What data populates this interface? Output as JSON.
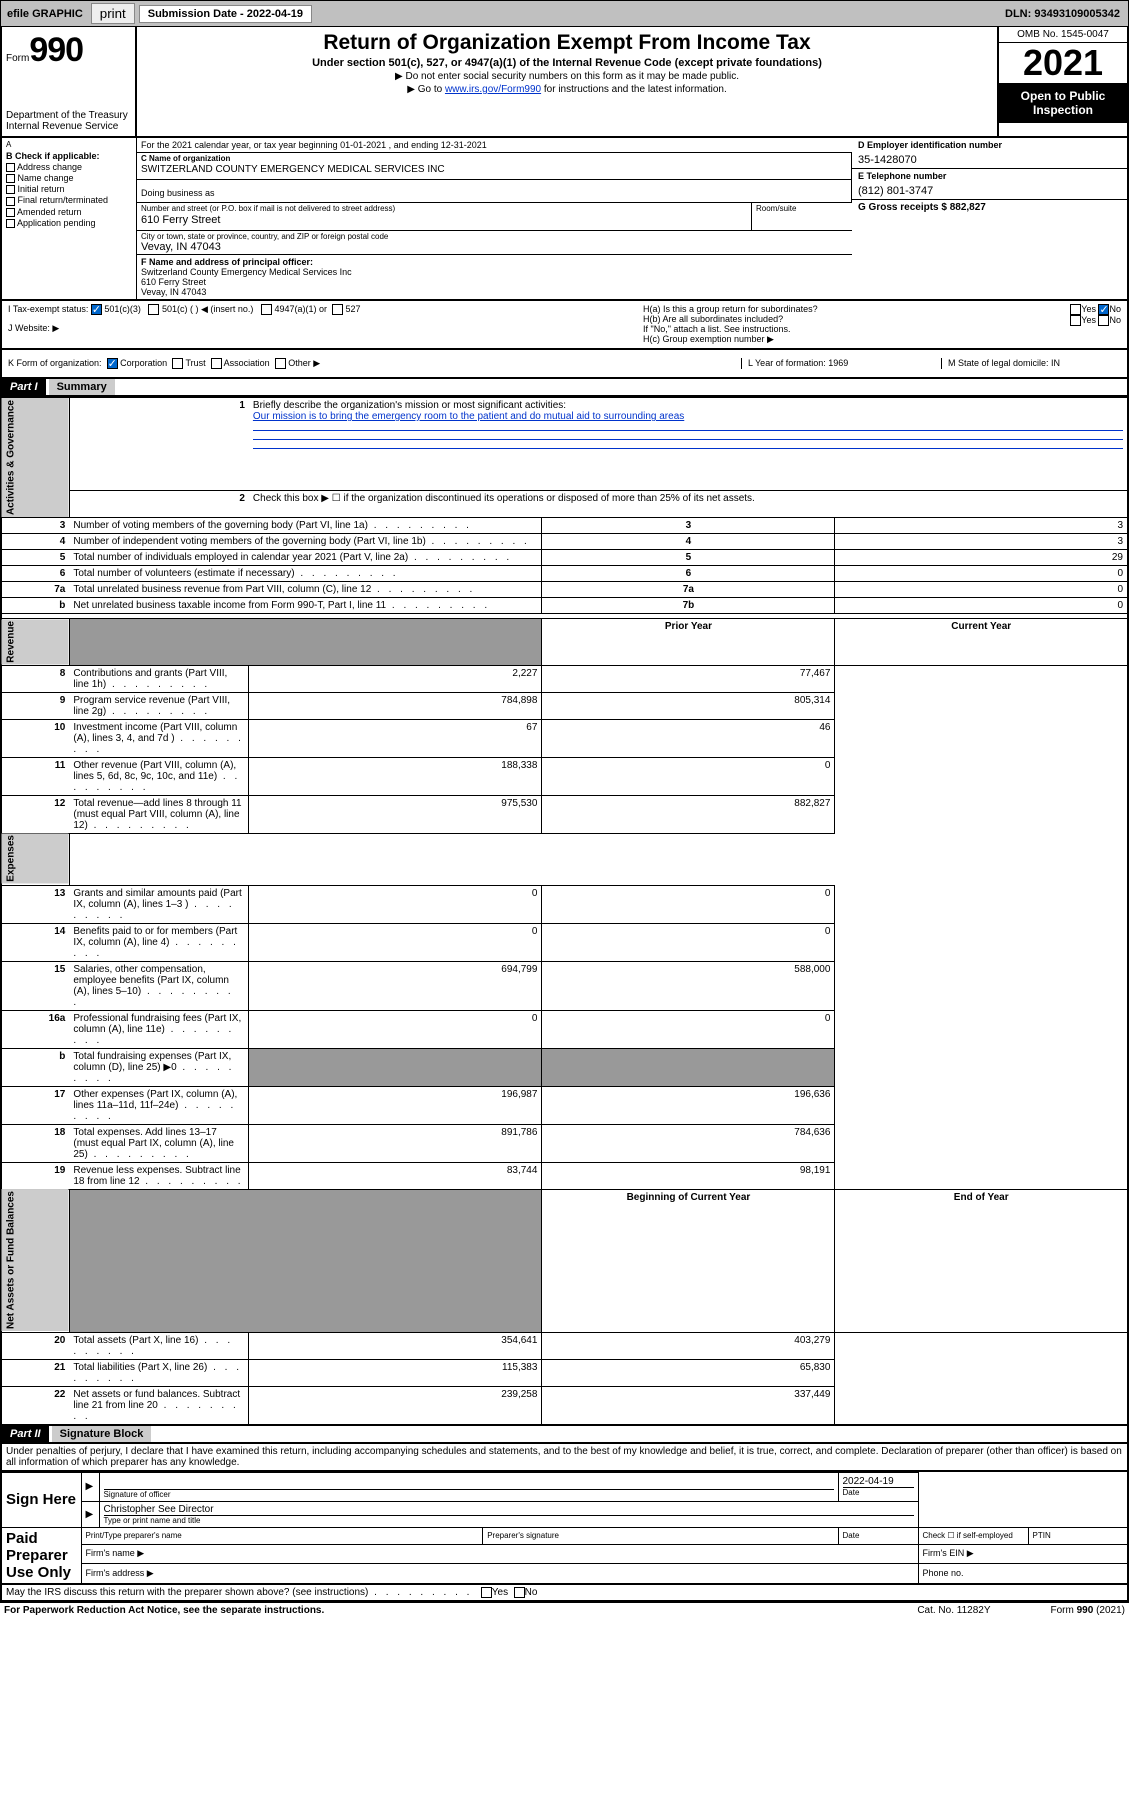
{
  "topbar": {
    "efile": "efile GRAPHIC",
    "print": "print",
    "subdate_label": "Submission Date - 2022-04-19",
    "dln": "DLN: 93493109005342"
  },
  "header": {
    "form_prefix": "Form",
    "form_no": "990",
    "dept": "Department of the Treasury Internal Revenue Service",
    "title": "Return of Organization Exempt From Income Tax",
    "sub": "Under section 501(c), 527, or 4947(a)(1) of the Internal Revenue Code (except private foundations)",
    "note1": "▶ Do not enter social security numbers on this form as it may be made public.",
    "note2_pre": "▶ Go to ",
    "note2_link": "www.irs.gov/Form990",
    "note2_post": " for instructions and the latest information.",
    "omb": "OMB No. 1545-0047",
    "year": "2021",
    "open": "Open to Public Inspection"
  },
  "line_a": "For the 2021 calendar year, or tax year beginning 01-01-2021   , and ending 12-31-2021",
  "col_b": {
    "title": "B Check if applicable:",
    "items": [
      "Address change",
      "Name change",
      "Initial return",
      "Final return/terminated",
      "Amended return",
      "Application pending"
    ]
  },
  "col_c": {
    "name_lbl": "C Name of organization",
    "name": "SWITZERLAND COUNTY EMERGENCY MEDICAL SERVICES INC",
    "dba_lbl": "Doing business as",
    "addr_lbl": "Number and street (or P.O. box if mail is not delivered to street address)",
    "addr": "610 Ferry Street",
    "room_lbl": "Room/suite",
    "city_lbl": "City or town, state or province, country, and ZIP or foreign postal code",
    "city": "Vevay, IN  47043",
    "f_lbl": "F Name and address of principal officer:",
    "f_name": "Switzerland County Emergency Medical Services Inc",
    "f_addr": "610 Ferry Street",
    "f_city": "Vevay, IN  47043"
  },
  "col_d": {
    "d_lbl": "D Employer identification number",
    "d_val": "35-1428070",
    "e_lbl": "E Telephone number",
    "e_val": "(812) 801-3747",
    "g_lbl": "G Gross receipts $ 882,827"
  },
  "row_i": {
    "label": "I    Tax-exempt status:",
    "opt1": "501(c)(3)",
    "opt2": "501(c) (  ) ◀ (insert no.)",
    "opt3": "4947(a)(1) or",
    "opt4": "527"
  },
  "row_j": "J    Website: ▶",
  "row_h": {
    "ha": "H(a)  Is this a group return for subordinates?",
    "hb": "H(b)  Are all subordinates included?",
    "hb_note": "If \"No,\" attach a list. See instructions.",
    "hc": "H(c)  Group exemption number ▶",
    "yes": "Yes",
    "no": "No"
  },
  "row_k": "K Form of organization:",
  "row_k_opts": [
    "Corporation",
    "Trust",
    "Association",
    "Other ▶"
  ],
  "row_l": "L Year of formation: 1969",
  "row_m": "M State of legal domicile: IN",
  "part1": {
    "hdr": "Part I",
    "title": "Summary"
  },
  "summary": {
    "sidebar": [
      "Activities & Governance",
      "Revenue",
      "Expenses",
      "Net Assets or Fund Balances"
    ],
    "line1": "Briefly describe the organization's mission or most significant activities:",
    "mission": "Our mission is to bring the emergency room to the patient and do mutual aid to surrounding areas",
    "line2": "Check this box ▶ ☐  if the organization discontinued its operations or disposed of more than 25% of its net assets.",
    "rows_gov": [
      {
        "n": "3",
        "d": "Number of voting members of the governing body (Part VI, line 1a)",
        "b": "3",
        "v": "3"
      },
      {
        "n": "4",
        "d": "Number of independent voting members of the governing body (Part VI, line 1b)",
        "b": "4",
        "v": "3"
      },
      {
        "n": "5",
        "d": "Total number of individuals employed in calendar year 2021 (Part V, line 2a)",
        "b": "5",
        "v": "29"
      },
      {
        "n": "6",
        "d": "Total number of volunteers (estimate if necessary)",
        "b": "6",
        "v": "0"
      },
      {
        "n": "7a",
        "d": "Total unrelated business revenue from Part VIII, column (C), line 12",
        "b": "7a",
        "v": "0"
      },
      {
        "n": "b",
        "d": "Net unrelated business taxable income from Form 990-T, Part I, line 11",
        "b": "7b",
        "v": "0"
      }
    ],
    "col_hdr": {
      "prior": "Prior Year",
      "current": "Current Year"
    },
    "rows_rev": [
      {
        "n": "8",
        "d": "Contributions and grants (Part VIII, line 1h)",
        "p": "2,227",
        "c": "77,467"
      },
      {
        "n": "9",
        "d": "Program service revenue (Part VIII, line 2g)",
        "p": "784,898",
        "c": "805,314"
      },
      {
        "n": "10",
        "d": "Investment income (Part VIII, column (A), lines 3, 4, and 7d )",
        "p": "67",
        "c": "46"
      },
      {
        "n": "11",
        "d": "Other revenue (Part VIII, column (A), lines 5, 6d, 8c, 9c, 10c, and 11e)",
        "p": "188,338",
        "c": "0"
      },
      {
        "n": "12",
        "d": "Total revenue—add lines 8 through 11 (must equal Part VIII, column (A), line 12)",
        "p": "975,530",
        "c": "882,827"
      }
    ],
    "rows_exp": [
      {
        "n": "13",
        "d": "Grants and similar amounts paid (Part IX, column (A), lines 1–3 )",
        "p": "0",
        "c": "0"
      },
      {
        "n": "14",
        "d": "Benefits paid to or for members (Part IX, column (A), line 4)",
        "p": "0",
        "c": "0"
      },
      {
        "n": "15",
        "d": "Salaries, other compensation, employee benefits (Part IX, column (A), lines 5–10)",
        "p": "694,799",
        "c": "588,000"
      },
      {
        "n": "16a",
        "d": "Professional fundraising fees (Part IX, column (A), line 11e)",
        "p": "0",
        "c": "0"
      },
      {
        "n": "b",
        "d": "Total fundraising expenses (Part IX, column (D), line 25) ▶0",
        "p": "",
        "c": "",
        "shaded": true
      },
      {
        "n": "17",
        "d": "Other expenses (Part IX, column (A), lines 11a–11d, 11f–24e)",
        "p": "196,987",
        "c": "196,636"
      },
      {
        "n": "18",
        "d": "Total expenses. Add lines 13–17 (must equal Part IX, column (A), line 25)",
        "p": "891,786",
        "c": "784,636"
      },
      {
        "n": "19",
        "d": "Revenue less expenses. Subtract line 18 from line 12",
        "p": "83,744",
        "c": "98,191"
      }
    ],
    "col_hdr2": {
      "begin": "Beginning of Current Year",
      "end": "End of Year"
    },
    "rows_net": [
      {
        "n": "20",
        "d": "Total assets (Part X, line 16)",
        "p": "354,641",
        "c": "403,279"
      },
      {
        "n": "21",
        "d": "Total liabilities (Part X, line 26)",
        "p": "115,383",
        "c": "65,830"
      },
      {
        "n": "22",
        "d": "Net assets or fund balances. Subtract line 21 from line 20",
        "p": "239,258",
        "c": "337,449"
      }
    ]
  },
  "part2": {
    "hdr": "Part II",
    "title": "Signature Block"
  },
  "declaration": "Under penalties of perjury, I declare that I have examined this return, including accompanying schedules and statements, and to the best of my knowledge and belief, it is true, correct, and complete. Declaration of preparer (other than officer) is based on all information of which preparer has any knowledge.",
  "sig": {
    "sign_here": "Sign Here",
    "sig_officer": "Signature of officer",
    "date": "Date",
    "date_val": "2022-04-19",
    "officer_name": "Christopher See  Director",
    "type_name": "Type or print name and title",
    "paid": "Paid Preparer Use Only",
    "prep_name": "Print/Type preparer's name",
    "prep_sig": "Preparer's signature",
    "prep_date": "Date",
    "check_if": "Check ☐ if self-employed",
    "ptin": "PTIN",
    "firm_name": "Firm's name   ▶",
    "firm_ein": "Firm's EIN ▶",
    "firm_addr": "Firm's address ▶",
    "phone": "Phone no."
  },
  "discuss": "May the IRS discuss this return with the preparer shown above? (see instructions)",
  "footer": {
    "left": "For Paperwork Reduction Act Notice, see the separate instructions.",
    "center": "Cat. No. 11282Y",
    "right": "Form 990 (2021)"
  }
}
